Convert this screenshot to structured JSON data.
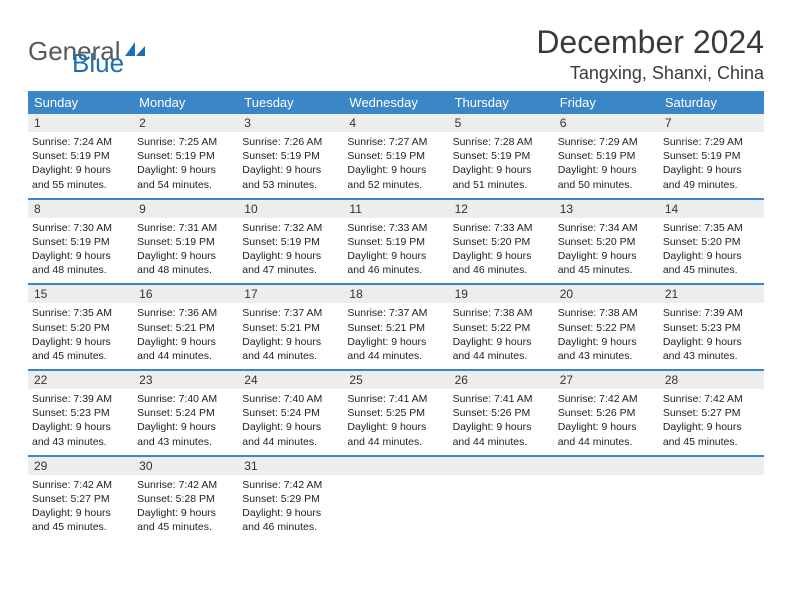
{
  "brand": {
    "word1": "General",
    "word2": "Blue"
  },
  "title": "December 2024",
  "location": "Tangxing, Shanxi, China",
  "colors": {
    "header_bar": "#3b86c7",
    "daynum_bg": "#eceded",
    "rule": "#3b86c7",
    "text": "#222222",
    "title_text": "#3a3a3a",
    "brand_gray": "#58595b",
    "brand_blue": "#1a6fb5"
  },
  "dow": [
    "Sunday",
    "Monday",
    "Tuesday",
    "Wednesday",
    "Thursday",
    "Friday",
    "Saturday"
  ],
  "weeks": [
    [
      {
        "n": "1",
        "sr": "Sunrise: 7:24 AM",
        "ss": "Sunset: 5:19 PM",
        "d1": "Daylight: 9 hours",
        "d2": "and 55 minutes."
      },
      {
        "n": "2",
        "sr": "Sunrise: 7:25 AM",
        "ss": "Sunset: 5:19 PM",
        "d1": "Daylight: 9 hours",
        "d2": "and 54 minutes."
      },
      {
        "n": "3",
        "sr": "Sunrise: 7:26 AM",
        "ss": "Sunset: 5:19 PM",
        "d1": "Daylight: 9 hours",
        "d2": "and 53 minutes."
      },
      {
        "n": "4",
        "sr": "Sunrise: 7:27 AM",
        "ss": "Sunset: 5:19 PM",
        "d1": "Daylight: 9 hours",
        "d2": "and 52 minutes."
      },
      {
        "n": "5",
        "sr": "Sunrise: 7:28 AM",
        "ss": "Sunset: 5:19 PM",
        "d1": "Daylight: 9 hours",
        "d2": "and 51 minutes."
      },
      {
        "n": "6",
        "sr": "Sunrise: 7:29 AM",
        "ss": "Sunset: 5:19 PM",
        "d1": "Daylight: 9 hours",
        "d2": "and 50 minutes."
      },
      {
        "n": "7",
        "sr": "Sunrise: 7:29 AM",
        "ss": "Sunset: 5:19 PM",
        "d1": "Daylight: 9 hours",
        "d2": "and 49 minutes."
      }
    ],
    [
      {
        "n": "8",
        "sr": "Sunrise: 7:30 AM",
        "ss": "Sunset: 5:19 PM",
        "d1": "Daylight: 9 hours",
        "d2": "and 48 minutes."
      },
      {
        "n": "9",
        "sr": "Sunrise: 7:31 AM",
        "ss": "Sunset: 5:19 PM",
        "d1": "Daylight: 9 hours",
        "d2": "and 48 minutes."
      },
      {
        "n": "10",
        "sr": "Sunrise: 7:32 AM",
        "ss": "Sunset: 5:19 PM",
        "d1": "Daylight: 9 hours",
        "d2": "and 47 minutes."
      },
      {
        "n": "11",
        "sr": "Sunrise: 7:33 AM",
        "ss": "Sunset: 5:19 PM",
        "d1": "Daylight: 9 hours",
        "d2": "and 46 minutes."
      },
      {
        "n": "12",
        "sr": "Sunrise: 7:33 AM",
        "ss": "Sunset: 5:20 PM",
        "d1": "Daylight: 9 hours",
        "d2": "and 46 minutes."
      },
      {
        "n": "13",
        "sr": "Sunrise: 7:34 AM",
        "ss": "Sunset: 5:20 PM",
        "d1": "Daylight: 9 hours",
        "d2": "and 45 minutes."
      },
      {
        "n": "14",
        "sr": "Sunrise: 7:35 AM",
        "ss": "Sunset: 5:20 PM",
        "d1": "Daylight: 9 hours",
        "d2": "and 45 minutes."
      }
    ],
    [
      {
        "n": "15",
        "sr": "Sunrise: 7:35 AM",
        "ss": "Sunset: 5:20 PM",
        "d1": "Daylight: 9 hours",
        "d2": "and 45 minutes."
      },
      {
        "n": "16",
        "sr": "Sunrise: 7:36 AM",
        "ss": "Sunset: 5:21 PM",
        "d1": "Daylight: 9 hours",
        "d2": "and 44 minutes."
      },
      {
        "n": "17",
        "sr": "Sunrise: 7:37 AM",
        "ss": "Sunset: 5:21 PM",
        "d1": "Daylight: 9 hours",
        "d2": "and 44 minutes."
      },
      {
        "n": "18",
        "sr": "Sunrise: 7:37 AM",
        "ss": "Sunset: 5:21 PM",
        "d1": "Daylight: 9 hours",
        "d2": "and 44 minutes."
      },
      {
        "n": "19",
        "sr": "Sunrise: 7:38 AM",
        "ss": "Sunset: 5:22 PM",
        "d1": "Daylight: 9 hours",
        "d2": "and 44 minutes."
      },
      {
        "n": "20",
        "sr": "Sunrise: 7:38 AM",
        "ss": "Sunset: 5:22 PM",
        "d1": "Daylight: 9 hours",
        "d2": "and 43 minutes."
      },
      {
        "n": "21",
        "sr": "Sunrise: 7:39 AM",
        "ss": "Sunset: 5:23 PM",
        "d1": "Daylight: 9 hours",
        "d2": "and 43 minutes."
      }
    ],
    [
      {
        "n": "22",
        "sr": "Sunrise: 7:39 AM",
        "ss": "Sunset: 5:23 PM",
        "d1": "Daylight: 9 hours",
        "d2": "and 43 minutes."
      },
      {
        "n": "23",
        "sr": "Sunrise: 7:40 AM",
        "ss": "Sunset: 5:24 PM",
        "d1": "Daylight: 9 hours",
        "d2": "and 43 minutes."
      },
      {
        "n": "24",
        "sr": "Sunrise: 7:40 AM",
        "ss": "Sunset: 5:24 PM",
        "d1": "Daylight: 9 hours",
        "d2": "and 44 minutes."
      },
      {
        "n": "25",
        "sr": "Sunrise: 7:41 AM",
        "ss": "Sunset: 5:25 PM",
        "d1": "Daylight: 9 hours",
        "d2": "and 44 minutes."
      },
      {
        "n": "26",
        "sr": "Sunrise: 7:41 AM",
        "ss": "Sunset: 5:26 PM",
        "d1": "Daylight: 9 hours",
        "d2": "and 44 minutes."
      },
      {
        "n": "27",
        "sr": "Sunrise: 7:42 AM",
        "ss": "Sunset: 5:26 PM",
        "d1": "Daylight: 9 hours",
        "d2": "and 44 minutes."
      },
      {
        "n": "28",
        "sr": "Sunrise: 7:42 AM",
        "ss": "Sunset: 5:27 PM",
        "d1": "Daylight: 9 hours",
        "d2": "and 45 minutes."
      }
    ],
    [
      {
        "n": "29",
        "sr": "Sunrise: 7:42 AM",
        "ss": "Sunset: 5:27 PM",
        "d1": "Daylight: 9 hours",
        "d2": "and 45 minutes."
      },
      {
        "n": "30",
        "sr": "Sunrise: 7:42 AM",
        "ss": "Sunset: 5:28 PM",
        "d1": "Daylight: 9 hours",
        "d2": "and 45 minutes."
      },
      {
        "n": "31",
        "sr": "Sunrise: 7:42 AM",
        "ss": "Sunset: 5:29 PM",
        "d1": "Daylight: 9 hours",
        "d2": "and 46 minutes."
      },
      {
        "n": "",
        "sr": "",
        "ss": "",
        "d1": "",
        "d2": ""
      },
      {
        "n": "",
        "sr": "",
        "ss": "",
        "d1": "",
        "d2": ""
      },
      {
        "n": "",
        "sr": "",
        "ss": "",
        "d1": "",
        "d2": ""
      },
      {
        "n": "",
        "sr": "",
        "ss": "",
        "d1": "",
        "d2": ""
      }
    ]
  ]
}
